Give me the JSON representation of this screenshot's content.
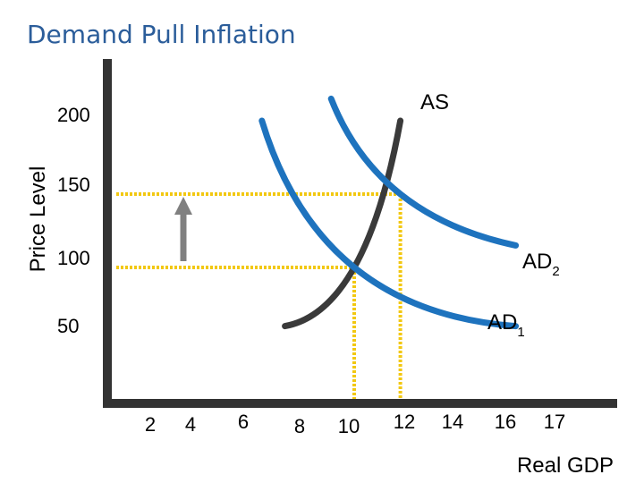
{
  "title": "Demand Pull Inflation",
  "chart_data": {
    "type": "line",
    "title": "Demand Pull Inflation",
    "xlabel": "Real GDP",
    "ylabel": "Price Level",
    "x_ticks": [
      "2",
      "4",
      "6",
      "8",
      "10",
      "12",
      "14",
      "16",
      "17"
    ],
    "y_ticks": [
      "50",
      "100",
      "150",
      "200"
    ],
    "grid": false,
    "series": [
      {
        "name": "AS",
        "label": "AS",
        "sub": "",
        "color": "#3a3a3a",
        "x": [
          7,
          10,
          12
        ],
        "y": [
          60,
          100,
          200
        ]
      },
      {
        "name": "AD1",
        "label": "AD",
        "sub": "1",
        "color": "#1e73be",
        "x": [
          6,
          10,
          17
        ],
        "y": [
          200,
          100,
          60
        ]
      },
      {
        "name": "AD2",
        "label": "AD",
        "sub": "2",
        "color": "#1e73be",
        "x": [
          9,
          12,
          17
        ],
        "y": [
          215,
          150,
          115
        ]
      }
    ],
    "equilibria": [
      {
        "x": 10,
        "y": 100
      },
      {
        "x": 12,
        "y": 150
      }
    ],
    "guide_color": "#f2c811",
    "arrow": {
      "direction": "up",
      "from_y": 100,
      "to_y": 150,
      "color": "#808080"
    }
  }
}
